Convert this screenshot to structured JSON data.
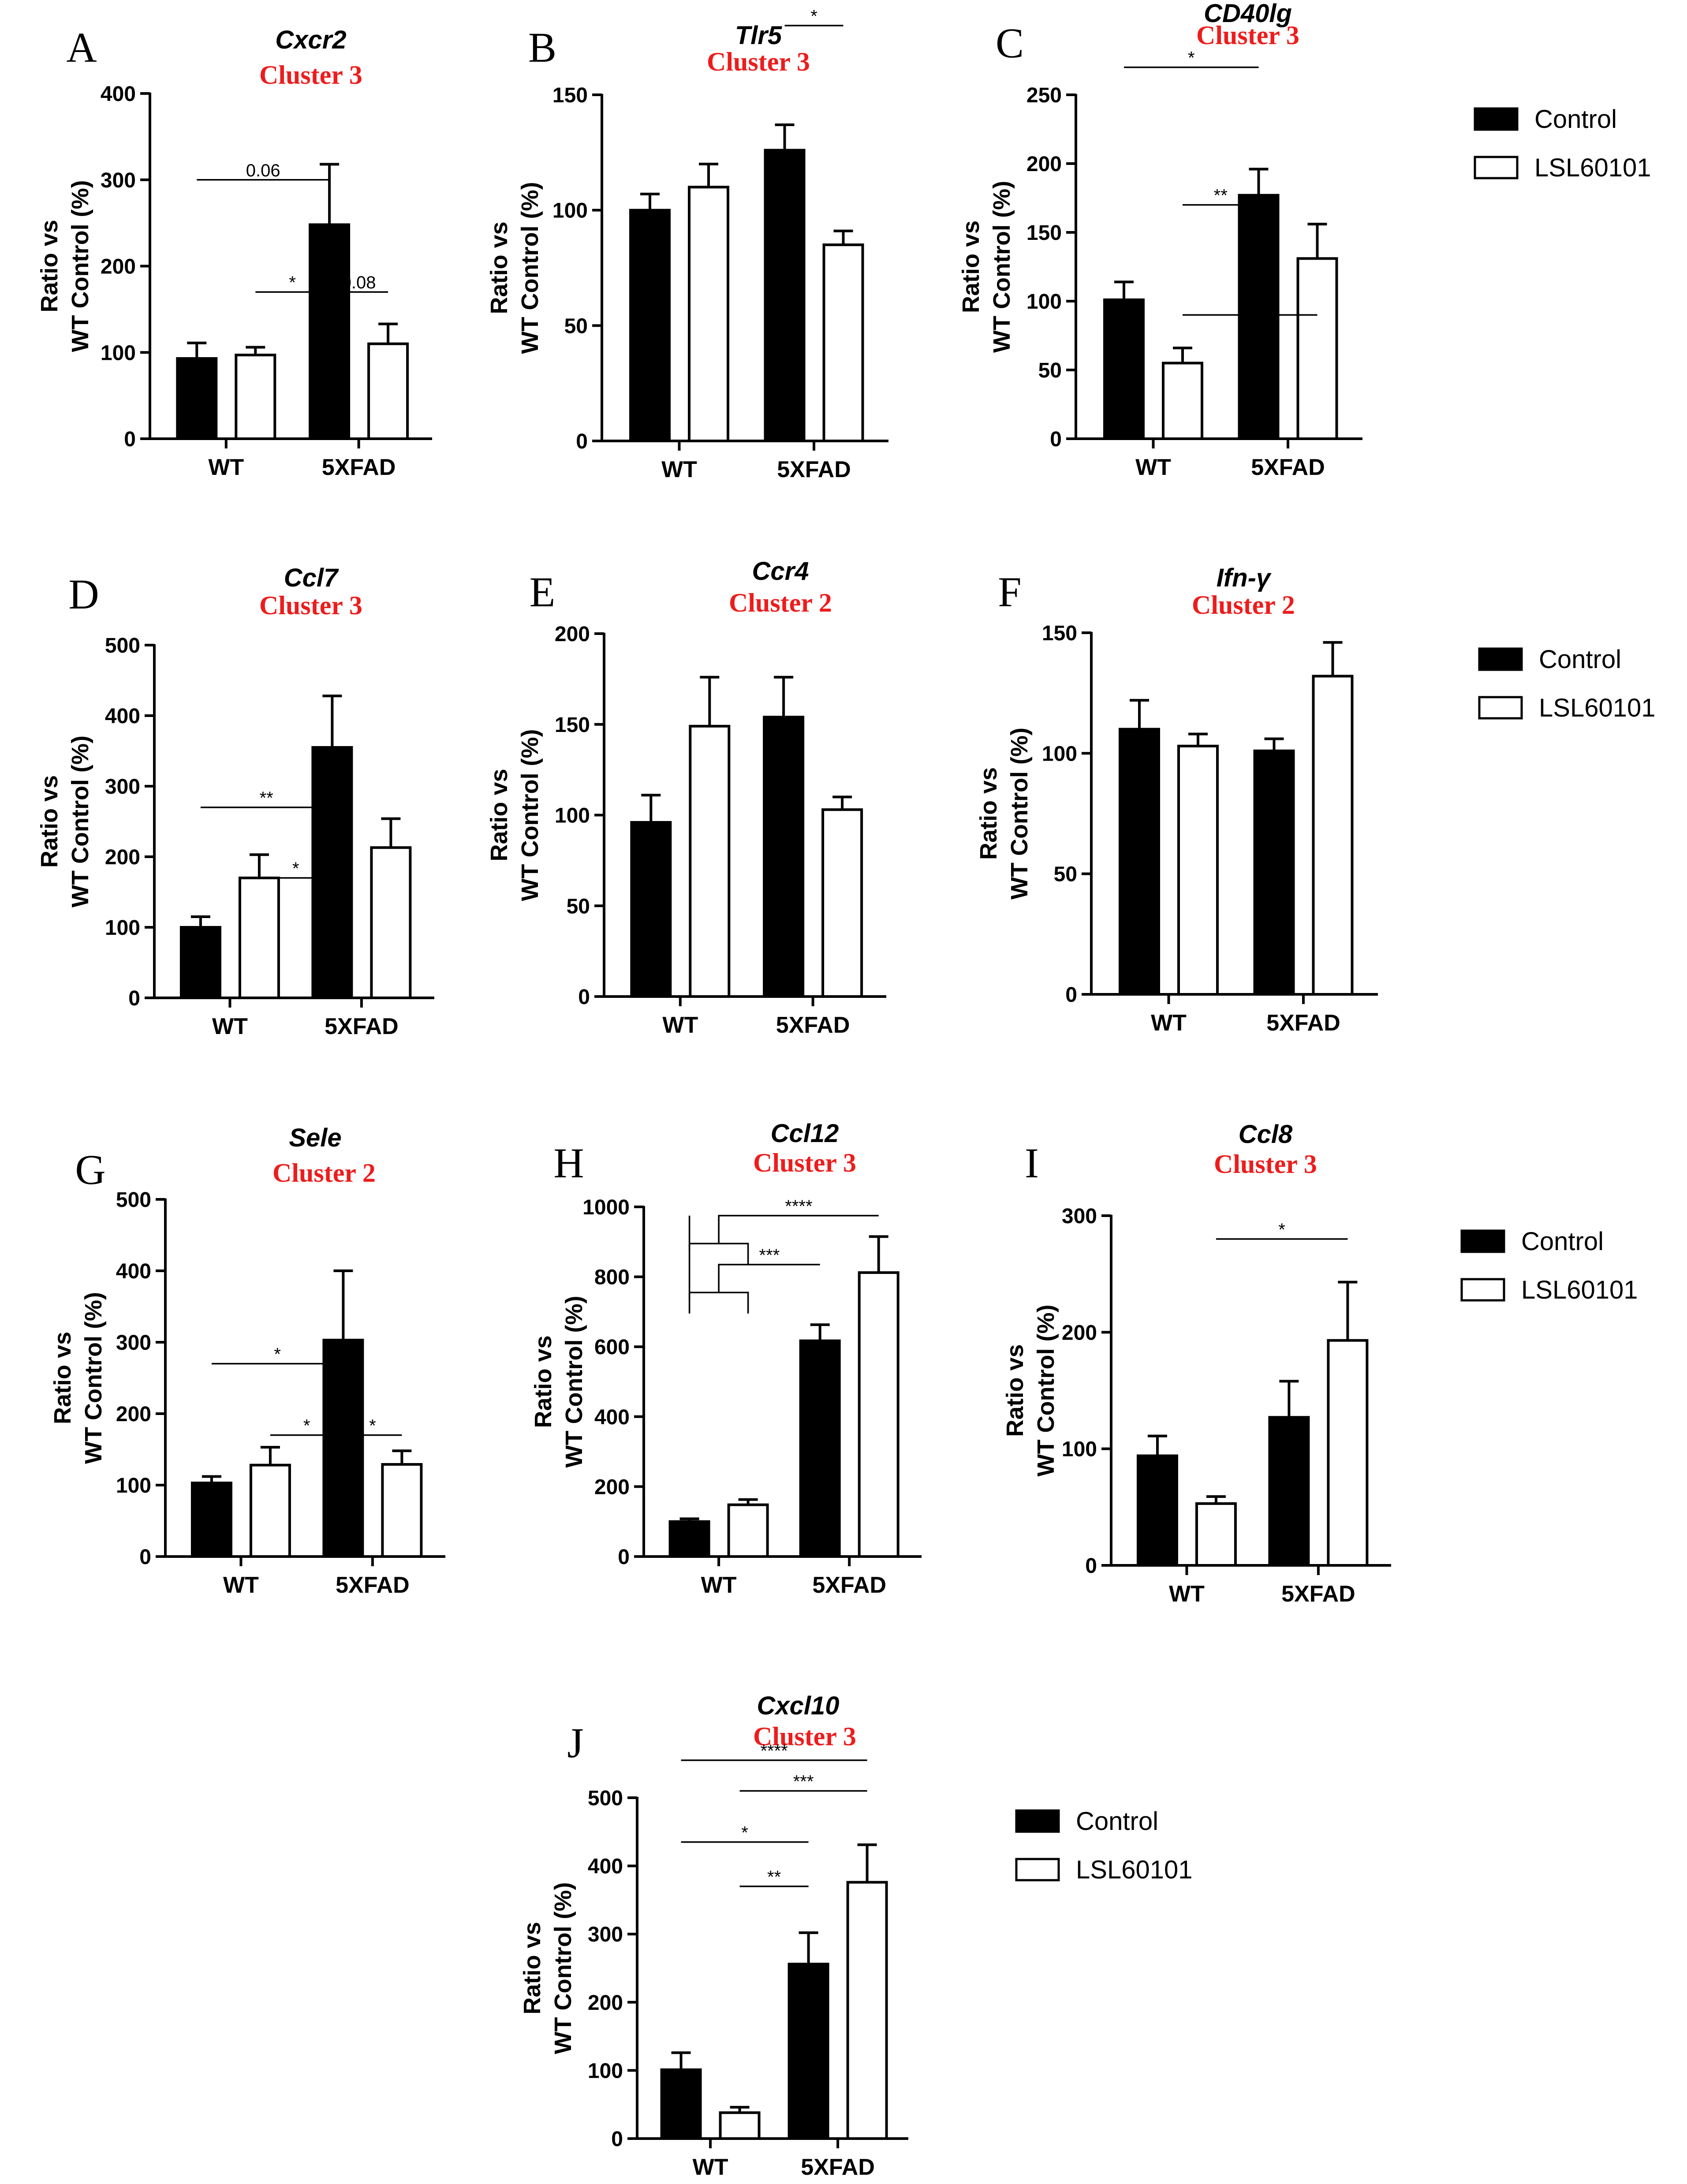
{
  "legend": {
    "items": [
      {
        "label": "Control",
        "fill": "#000000"
      },
      {
        "label": "LSL60101",
        "fill": "#ffffff"
      }
    ]
  },
  "chart_data": [
    {
      "panel": "A",
      "type": "bar",
      "title": "Cxcr2",
      "cluster": "Cluster 3",
      "ylabel": [
        "Ratio vs",
        "WT Control (%)"
      ],
      "categories": [
        "WT",
        "5XFAD"
      ],
      "ylim": [
        0,
        400
      ],
      "yticks": [
        0,
        100,
        200,
        300,
        400
      ],
      "series": [
        {
          "name": "Control",
          "values": [
            93,
            248
          ],
          "errors": [
            18,
            70
          ]
        },
        {
          "name": "LSL60101",
          "values": [
            97,
            110
          ],
          "errors": [
            9,
            23
          ]
        }
      ],
      "significance": [
        {
          "from": [
            0,
            0
          ],
          "to": [
            1,
            0
          ],
          "label": "0.06",
          "level": 300
        },
        {
          "from": [
            0,
            1
          ],
          "to": [
            1,
            0
          ],
          "label": "*",
          "level": 170
        },
        {
          "from": [
            1,
            0
          ],
          "to": [
            1,
            1
          ],
          "label": "0.08",
          "level": 170
        }
      ]
    },
    {
      "panel": "B",
      "type": "bar",
      "title": "Tlr5",
      "cluster": "Cluster 3",
      "ylabel": [
        "Ratio vs",
        "WT Control (%)"
      ],
      "categories": [
        "WT",
        "5XFAD"
      ],
      "ylim": [
        0,
        150
      ],
      "yticks": [
        0,
        50,
        100,
        150
      ],
      "series": [
        {
          "name": "Control",
          "values": [
            100,
            126
          ],
          "errors": [
            7,
            11
          ]
        },
        {
          "name": "LSL60101",
          "values": [
            110,
            85
          ],
          "errors": [
            10,
            6
          ]
        }
      ],
      "significance": [
        {
          "from": [
            1,
            0
          ],
          "to": [
            1,
            1
          ],
          "label": "*",
          "level": 180
        }
      ]
    },
    {
      "panel": "C",
      "type": "bar",
      "title": "CD40lg",
      "cluster": "Cluster 3",
      "ylabel": [
        "Ratio vs",
        "WT Control (%)"
      ],
      "categories": [
        "WT",
        "5XFAD"
      ],
      "ylim": [
        0,
        250
      ],
      "yticks": [
        0,
        50,
        100,
        150,
        200,
        250
      ],
      "series": [
        {
          "name": "Control",
          "values": [
            101,
            177
          ],
          "errors": [
            13,
            19
          ]
        },
        {
          "name": "LSL60101",
          "values": [
            55,
            131
          ],
          "errors": [
            11,
            25
          ]
        }
      ],
      "significance": [
        {
          "from": [
            0,
            0
          ],
          "to": [
            1,
            0
          ],
          "label": "*",
          "level": 270
        },
        {
          "from": [
            0,
            1
          ],
          "to": [
            1,
            0
          ],
          "label": "**",
          "level": 170
        },
        {
          "from": [
            0,
            1
          ],
          "to": [
            1,
            1
          ],
          "label": "*",
          "level": 90
        }
      ]
    },
    {
      "panel": "D",
      "type": "bar",
      "title": "Ccl7",
      "cluster": "Cluster 3",
      "ylabel": [
        "Ratio vs",
        "WT Control (%)"
      ],
      "categories": [
        "WT",
        "5XFAD"
      ],
      "ylim": [
        0,
        500
      ],
      "yticks": [
        0,
        100,
        200,
        300,
        400,
        500
      ],
      "series": [
        {
          "name": "Control",
          "values": [
            100,
            355
          ],
          "errors": [
            15,
            73
          ]
        },
        {
          "name": "LSL60101",
          "values": [
            170,
            213
          ],
          "errors": [
            33,
            41
          ]
        }
      ],
      "significance": [
        {
          "from": [
            0,
            0
          ],
          "to": [
            1,
            0
          ],
          "label": "**",
          "level": 270
        },
        {
          "from": [
            0,
            1
          ],
          "to": [
            1,
            0
          ],
          "label": "*",
          "level": 170
        }
      ]
    },
    {
      "panel": "E",
      "type": "bar",
      "title": "Ccr4",
      "cluster": "Cluster 2",
      "ylabel": [
        "Ratio vs",
        "WT Control (%)"
      ],
      "categories": [
        "WT",
        "5XFAD"
      ],
      "ylim": [
        0,
        200
      ],
      "yticks": [
        0,
        50,
        100,
        150,
        200
      ],
      "series": [
        {
          "name": "Control",
          "values": [
            96,
            154
          ],
          "errors": [
            15,
            22
          ]
        },
        {
          "name": "LSL60101",
          "values": [
            149,
            103
          ],
          "errors": [
            27,
            7
          ]
        }
      ],
      "significance": []
    },
    {
      "panel": "F",
      "type": "bar",
      "title": "Ifn-γ",
      "cluster": "Cluster 2",
      "ylabel": [
        "Ratio vs",
        "WT Control (%)"
      ],
      "categories": [
        "WT",
        "5XFAD"
      ],
      "ylim": [
        0,
        150
      ],
      "yticks": [
        0,
        50,
        100,
        150
      ],
      "series": [
        {
          "name": "Control",
          "values": [
            110,
            101
          ],
          "errors": [
            12,
            5
          ]
        },
        {
          "name": "LSL60101",
          "values": [
            103,
            132
          ],
          "errors": [
            5,
            14
          ]
        }
      ],
      "significance": []
    },
    {
      "panel": "G",
      "type": "bar",
      "title": "Sele",
      "cluster": "Cluster 2",
      "ylabel": [
        "Ratio vs",
        "WT Control (%)"
      ],
      "categories": [
        "WT",
        "5XFAD"
      ],
      "ylim": [
        0,
        500
      ],
      "yticks": [
        0,
        100,
        200,
        300,
        400,
        500
      ],
      "series": [
        {
          "name": "Control",
          "values": [
            103,
            303
          ],
          "errors": [
            9,
            97
          ]
        },
        {
          "name": "LSL60101",
          "values": [
            128,
            129
          ],
          "errors": [
            25,
            19
          ]
        }
      ],
      "significance": [
        {
          "from": [
            0,
            0
          ],
          "to": [
            1,
            0
          ],
          "label": "*",
          "level": 270
        },
        {
          "from": [
            0,
            1
          ],
          "to": [
            1,
            0
          ],
          "label": "*",
          "level": 170
        },
        {
          "from": [
            1,
            0
          ],
          "to": [
            1,
            1
          ],
          "label": "*",
          "level": 170
        }
      ]
    },
    {
      "panel": "H",
      "type": "bar",
      "title": "Ccl12",
      "cluster": "Cluster 3",
      "ylabel": [
        "Ratio vs",
        "WT Control (%)"
      ],
      "categories": [
        "WT",
        "5XFAD"
      ],
      "ylim": [
        0,
        1000
      ],
      "yticks": [
        0,
        200,
        400,
        600,
        800,
        1000
      ],
      "series": [
        {
          "name": "Control",
          "values": [
            100,
            617
          ],
          "errors": [
            8,
            46
          ]
        },
        {
          "name": "LSL60101",
          "values": [
            148,
            812
          ],
          "errors": [
            15,
            103
          ]
        }
      ],
      "significance": [
        {
          "from": "WT",
          "to": [
            1,
            1
          ],
          "label": "****",
          "level": 975
        },
        {
          "from": "WT",
          "to": [
            1,
            0
          ],
          "label": "***",
          "level": 835
        }
      ]
    },
    {
      "panel": "I",
      "type": "bar",
      "title": "Ccl8",
      "cluster": "Cluster 3",
      "ylabel": [
        "Ratio vs",
        "WT Control (%)"
      ],
      "categories": [
        "WT",
        "5XFAD"
      ],
      "ylim": [
        0,
        300
      ],
      "yticks": [
        0,
        100,
        200,
        300
      ],
      "series": [
        {
          "name": "Control",
          "values": [
            94,
            127
          ],
          "errors": [
            17,
            31
          ]
        },
        {
          "name": "LSL60101",
          "values": [
            53,
            193
          ],
          "errors": [
            6,
            50
          ]
        }
      ],
      "significance": [
        {
          "from": [
            0,
            1
          ],
          "to": [
            1,
            1
          ],
          "label": "*",
          "level": 280
        }
      ]
    },
    {
      "panel": "J",
      "type": "bar",
      "title": "Cxcl10",
      "cluster": "Cluster 3",
      "ylabel": [
        "Ratio vs",
        "WT Control (%)"
      ],
      "categories": [
        "WT",
        "5XFAD"
      ],
      "ylim": [
        0,
        500
      ],
      "yticks": [
        0,
        100,
        200,
        300,
        400,
        500
      ],
      "series": [
        {
          "name": "Control",
          "values": [
            101,
            256
          ],
          "errors": [
            25,
            46
          ]
        },
        {
          "name": "LSL60101",
          "values": [
            38,
            376
          ],
          "errors": [
            8,
            55
          ]
        }
      ],
      "significance": [
        {
          "from": [
            0,
            0
          ],
          "to": [
            1,
            1
          ],
          "label": "****",
          "level": 555
        },
        {
          "from": [
            0,
            1
          ],
          "to": [
            1,
            1
          ],
          "label": "***",
          "level": 510
        },
        {
          "from": [
            0,
            0
          ],
          "to": [
            1,
            0
          ],
          "label": "*",
          "level": 435
        },
        {
          "from": [
            0,
            1
          ],
          "to": [
            1,
            0
          ],
          "label": "**",
          "level": 370
        }
      ]
    }
  ]
}
